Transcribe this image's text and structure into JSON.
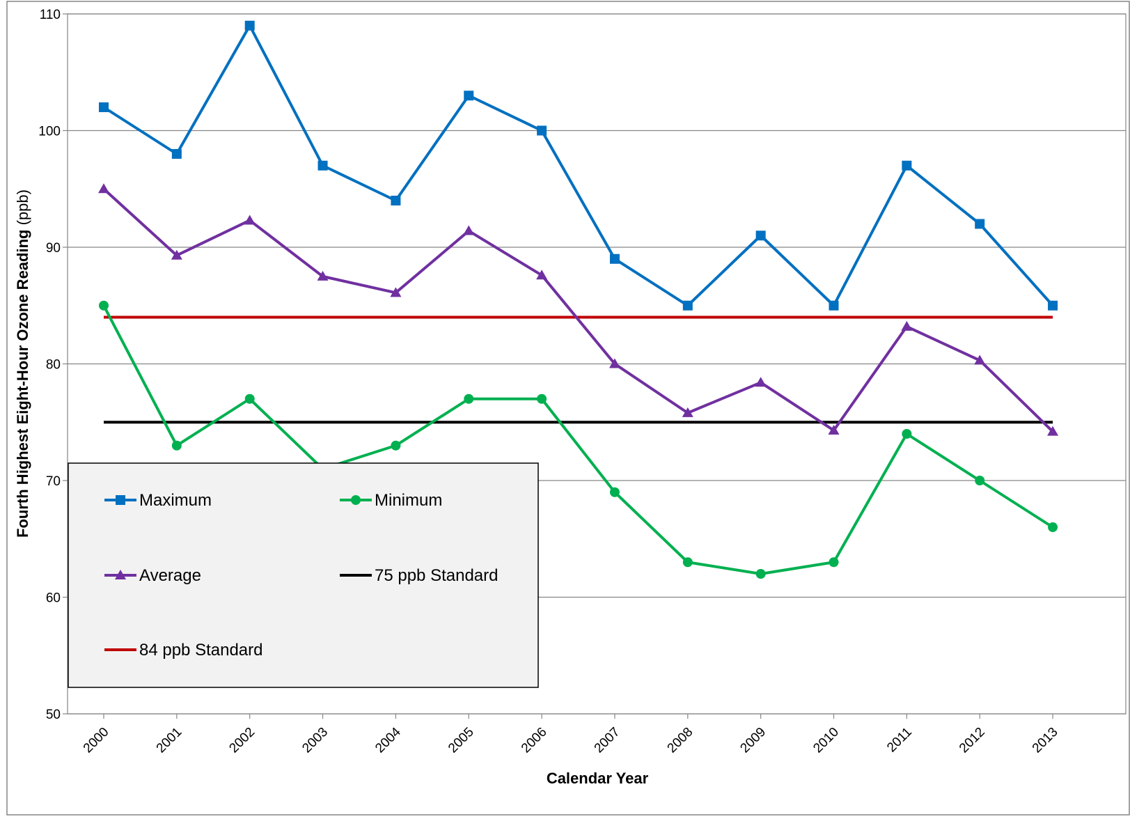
{
  "chart_data": {
    "type": "line",
    "xlabel": "Calendar Year",
    "ylabel_bold": "Fourth Highest Eight-Hour Ozone Reading",
    "ylabel_unit": " (ppb)",
    "ylim": [
      50,
      110
    ],
    "yticks": [
      50,
      60,
      70,
      80,
      90,
      100,
      110
    ],
    "grid": "horizontal",
    "legend_placement": "bottom-left",
    "categories": [
      "2000",
      "2001",
      "2002",
      "2003",
      "2004",
      "2005",
      "2006",
      "2007",
      "2008",
      "2009",
      "2010",
      "2011",
      "2012",
      "2013"
    ],
    "series": [
      {
        "name": "Maximum",
        "color": "#0070C0",
        "marker": "square",
        "values": [
          102,
          98,
          109,
          97,
          94,
          103,
          100,
          89,
          85,
          91,
          85,
          97,
          92,
          85
        ]
      },
      {
        "name": "Minimum",
        "color": "#00B050",
        "marker": "circle",
        "values": [
          85,
          73,
          77,
          71,
          73,
          77,
          77,
          69,
          63,
          62,
          63,
          74,
          70,
          66
        ]
      },
      {
        "name": "Average",
        "color": "#7030A0",
        "marker": "triangle",
        "values": [
          95,
          89.3,
          92.3,
          87.5,
          86.1,
          91.4,
          87.6,
          80,
          75.8,
          78.4,
          74.3,
          83.2,
          80.3,
          74.2
        ]
      },
      {
        "name": "75 ppb Standard",
        "color": "#000000",
        "marker": "none",
        "values": [
          75,
          75,
          75,
          75,
          75,
          75,
          75,
          75,
          75,
          75,
          75,
          75,
          75,
          75
        ]
      },
      {
        "name": "84 ppb Standard",
        "color": "#C00000",
        "marker": "none",
        "values": [
          84,
          84,
          84,
          84,
          84,
          84,
          84,
          84,
          84,
          84,
          84,
          84,
          84,
          84
        ]
      }
    ],
    "draw_order": [
      "84 ppb Standard",
      "75 ppb Standard",
      "Maximum",
      "Average",
      "Minimum"
    ]
  }
}
